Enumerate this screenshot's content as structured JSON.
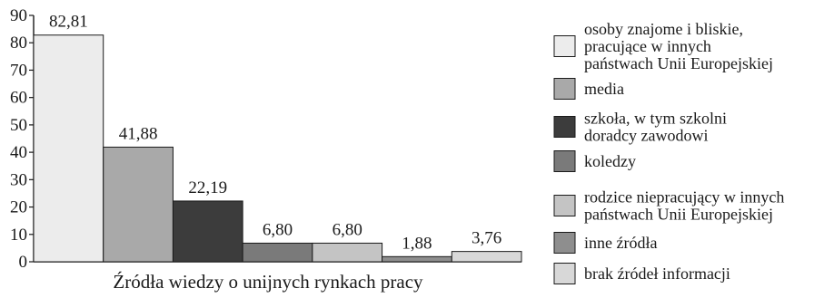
{
  "chart_data": {
    "type": "bar",
    "title": "",
    "xlabel": "Źródła wiedzy o unijnych rynkach pracy",
    "ylabel": "",
    "ylim": [
      0,
      90
    ],
    "yticks": [
      0,
      10,
      20,
      30,
      40,
      50,
      60,
      70,
      80,
      90
    ],
    "grid": false,
    "legend_position": "right",
    "categories": [
      "osoby znajome i bliskie, pracujące w innych państwach Unii Europejskiej",
      "media",
      "szkoła, w tym szkolni doradcy zawodowi",
      "koledzy",
      "rodzice niepracujący w innych państwach Unii Europejskiej",
      "inne źródła",
      "brak źródeł informacji"
    ],
    "values": [
      82.81,
      41.88,
      22.19,
      6.8,
      6.8,
      1.88,
      3.76
    ],
    "value_labels": [
      "82,81",
      "41,88",
      "22,19",
      "6,80",
      "6,80",
      "1,88",
      "3,76"
    ],
    "colors": [
      "#ececec",
      "#a9a9a9",
      "#3c3c3c",
      "#7a7a7a",
      "#c4c4c4",
      "#8e8e8e",
      "#d8d8d8"
    ],
    "legend": [
      {
        "lines": [
          "osoby znajome i bliskie,",
          "pracujące w innych",
          "państwach Unii Europejskiej"
        ]
      },
      {
        "lines": [
          "media"
        ]
      },
      {
        "lines": [
          "szkoła, w tym szkolni",
          "doradcy zawodowi"
        ]
      },
      {
        "lines": [
          "koledzy"
        ]
      },
      {
        "lines": [
          "rodzice niepracujący w innych",
          "państwach Unii Europejskiej"
        ]
      },
      {
        "lines": [
          "inne źródła"
        ]
      },
      {
        "lines": [
          "brak źródeł informacji"
        ]
      }
    ]
  }
}
